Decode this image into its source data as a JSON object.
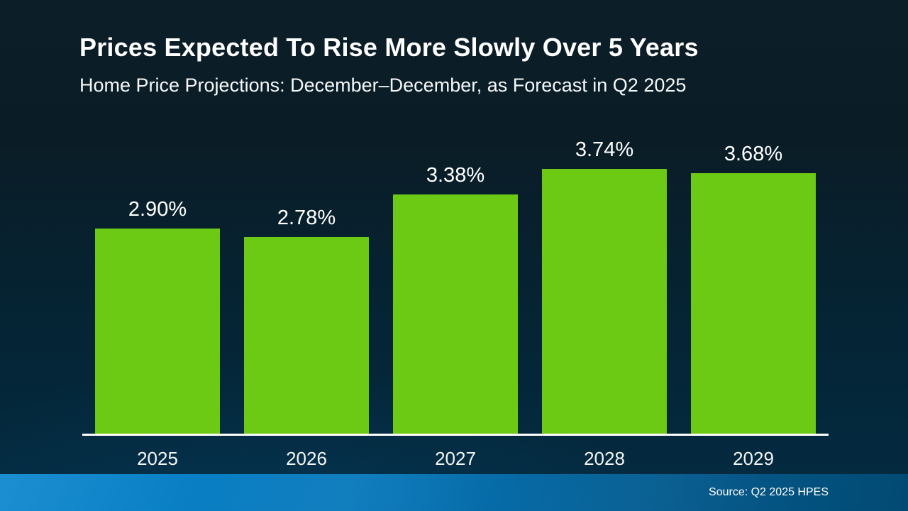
{
  "title": "Prices Expected To Rise More Slowly Over 5 Years",
  "subtitle": "Home Price Projections: December–December, as Forecast in Q2 2025",
  "footer": {
    "source": "Source: Q2 2025 HPES"
  },
  "colors": {
    "bar_green": "#6cc914",
    "background_top": "#0c1e27",
    "background_bottom": "#032b42",
    "footer_blue_left": "#0a86cd",
    "footer_blue_right": "#024a73",
    "axis_line": "#ffffff",
    "text": "#ffffff"
  },
  "chart_data": {
    "type": "bar",
    "categories": [
      "2025",
      "2026",
      "2027",
      "2028",
      "2029"
    ],
    "values": [
      2.9,
      2.78,
      3.38,
      3.74,
      3.68
    ],
    "value_labels": [
      "2.90%",
      "2.78%",
      "3.38%",
      "3.74%",
      "3.68%"
    ],
    "title": "Prices Expected To Rise More Slowly Over 5 Years",
    "subtitle": "Home Price Projections: December–December, as Forecast in Q2 2025",
    "xlabel": "",
    "ylabel": "",
    "ylim": [
      0,
      4
    ],
    "grid": false,
    "legend": false,
    "bar_color": "#6cc914",
    "background": "dark-navy-gradient",
    "source": "Source: Q2 2025 HPES"
  }
}
